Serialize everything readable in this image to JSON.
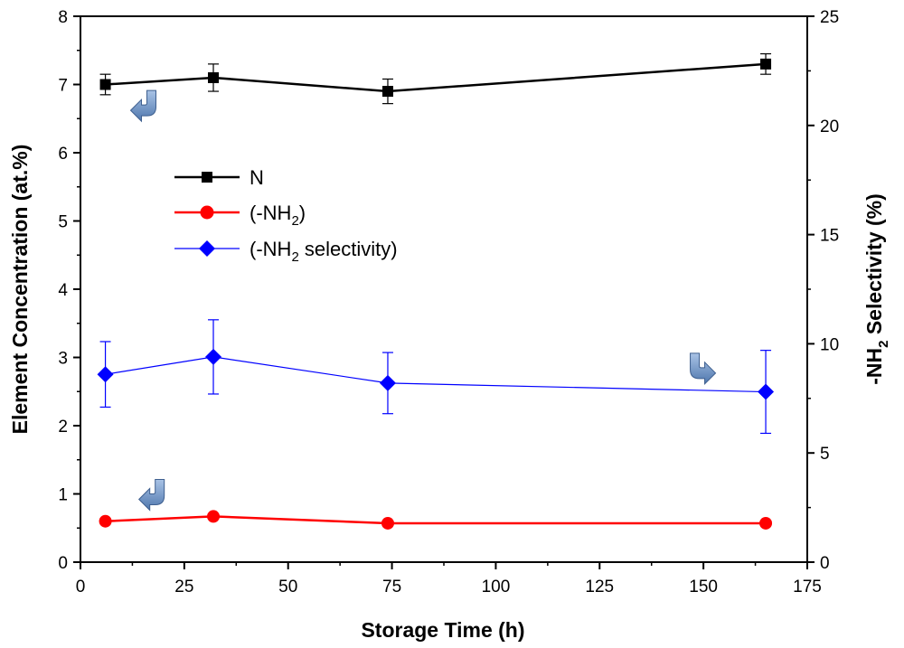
{
  "chart_data": {
    "type": "line",
    "xlabel": "Storage Time (h)",
    "ylabel_left": "Element Concentration (at.%)",
    "ylabel_right_prefix": "-NH",
    "ylabel_right_sub": "2",
    "ylabel_right_suffix": " Selectivity (%)",
    "xlim": [
      0,
      175
    ],
    "ylim_left": [
      0,
      8
    ],
    "ylim_right": [
      0,
      25
    ],
    "xticks": [
      0,
      25,
      50,
      75,
      100,
      125,
      150,
      175
    ],
    "yticks_left": [
      0,
      1,
      2,
      3,
      4,
      5,
      6,
      7,
      8
    ],
    "yticks_right": [
      0,
      5,
      10,
      15,
      20,
      25
    ],
    "series": [
      {
        "name": "N",
        "legend_main": "N",
        "legend_sub": "",
        "legend_tail": "",
        "axis": "left",
        "color": "#000000",
        "marker": "square",
        "x": [
          6,
          32,
          74,
          165
        ],
        "y": [
          7.0,
          7.1,
          6.9,
          7.3
        ],
        "err": [
          0.15,
          0.2,
          0.18,
          0.15
        ]
      },
      {
        "name": "(-NH2)",
        "legend_main": "(-NH",
        "legend_sub": "2",
        "legend_tail": ")",
        "axis": "left",
        "color": "#ff0000",
        "marker": "circle",
        "x": [
          6,
          32,
          74,
          165
        ],
        "y": [
          0.6,
          0.67,
          0.57,
          0.57
        ],
        "err": [
          0,
          0,
          0,
          0
        ]
      },
      {
        "name": "(-NH2 selectivity)",
        "legend_main": "(-NH",
        "legend_sub": "2",
        "legend_tail": " selectivity)",
        "axis": "right",
        "color": "#0000ff",
        "marker": "diamond",
        "x": [
          6,
          32,
          74,
          165
        ],
        "y": [
          8.6,
          9.4,
          8.2,
          7.8
        ],
        "err": [
          1.5,
          1.7,
          1.4,
          1.9
        ]
      }
    ],
    "annotations": [
      {
        "name": "n-axis-arrow",
        "direction": "left",
        "x": 16,
        "y": 6.7
      },
      {
        "name": "nh2-axis-arrow",
        "direction": "left",
        "x": 18,
        "y": 1.0
      },
      {
        "name": "selectivity-axis-arrow",
        "direction": "right",
        "x": 149,
        "y": 2.85
      }
    ],
    "legend_position": "upper-left"
  },
  "colors": {
    "n_series": "#000000",
    "nh2_series": "#ff0000",
    "selectivity_series": "#0000ff",
    "arrow_fill": "#6f94c4"
  }
}
